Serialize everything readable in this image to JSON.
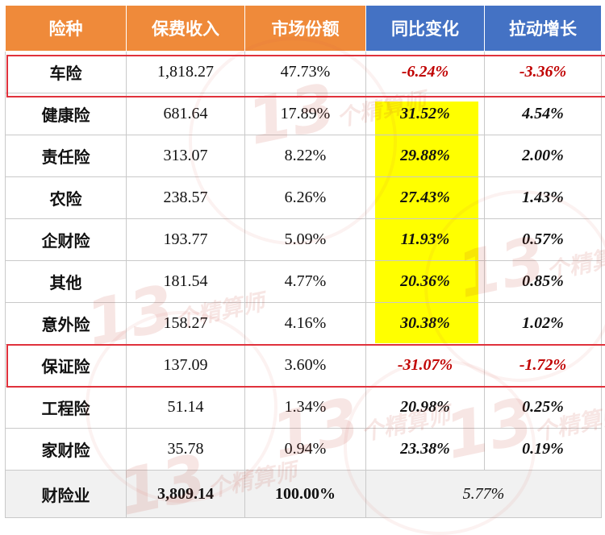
{
  "header": [
    "险种",
    "保费收入",
    "市场份额",
    "同比变化",
    "拉动增长"
  ],
  "rows": [
    {
      "name": "车险",
      "premium": "1,818.27",
      "share": "47.73%",
      "yoy": "-6.24%",
      "contrib": "-3.36%"
    },
    {
      "name": "健康险",
      "premium": "681.64",
      "share": "17.89%",
      "yoy": "31.52%",
      "contrib": "4.54%"
    },
    {
      "name": "责任险",
      "premium": "313.07",
      "share": "8.22%",
      "yoy": "29.88%",
      "contrib": "2.00%"
    },
    {
      "name": "农险",
      "premium": "238.57",
      "share": "6.26%",
      "yoy": "27.43%",
      "contrib": "1.43%"
    },
    {
      "name": "企财险",
      "premium": "193.77",
      "share": "5.09%",
      "yoy": "11.93%",
      "contrib": "0.57%"
    },
    {
      "name": "其他",
      "premium": "181.54",
      "share": "4.77%",
      "yoy": "20.36%",
      "contrib": "0.85%"
    },
    {
      "name": "意外险",
      "premium": "158.27",
      "share": "4.16%",
      "yoy": "30.38%",
      "contrib": "1.02%"
    },
    {
      "name": "保证险",
      "premium": "137.09",
      "share": "3.60%",
      "yoy": "-31.07%",
      "contrib": "-1.72%"
    },
    {
      "name": "工程险",
      "premium": "51.14",
      "share": "1.34%",
      "yoy": "20.98%",
      "contrib": "0.25%"
    },
    {
      "name": "家财险",
      "premium": "35.78",
      "share": "0.94%",
      "yoy": "23.38%",
      "contrib": "0.19%"
    }
  ],
  "total": {
    "name": "财险业",
    "premium": "3,809.14",
    "share": "100.00%",
    "yoy": "5.77%"
  },
  "watermark": {
    "number": "13",
    "text": "个精算师"
  },
  "colors": {
    "header_orange": "#ef8a3a",
    "header_blue": "#4472c4",
    "highlight": "#ffff00",
    "negative": "#c00000",
    "box": "#e0323c"
  }
}
